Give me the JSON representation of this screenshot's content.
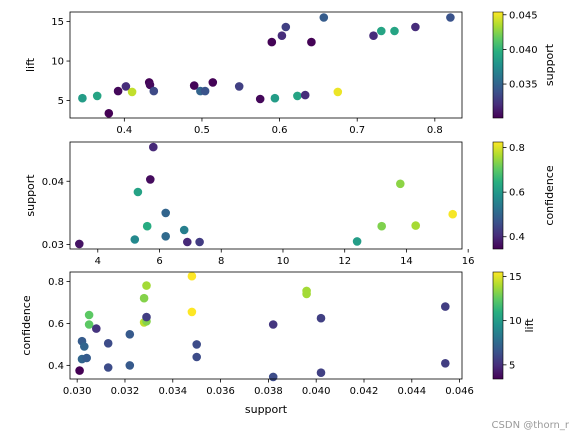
{
  "watermark": "CSDN @thorn_r",
  "chart_data": [
    {
      "type": "scatter",
      "xlabel": "",
      "ylabel": "lift",
      "xlim": [
        0.33,
        0.835
      ],
      "ylim": [
        2.8,
        16.2
      ],
      "xticks": [
        0.4,
        0.5,
        0.6,
        0.7,
        0.8
      ],
      "xtick_labels": [
        "0.4",
        "0.5",
        "0.6",
        "0.7",
        "0.8"
      ],
      "yticks": [
        5,
        10,
        15
      ],
      "ytick_labels": [
        "5",
        "10",
        "15"
      ],
      "colorbar": {
        "label": "support",
        "colormap": "viridis",
        "range": [
          0.0301,
          0.0454
        ],
        "ticks": [
          0.035,
          0.04,
          0.045
        ],
        "tick_labels": [
          "0.035",
          "0.040",
          "0.045"
        ]
      },
      "points": [
        {
          "x": 0.346,
          "y": 5.3,
          "c": 0.0385
        },
        {
          "x": 0.365,
          "y": 5.6,
          "c": 0.039
        },
        {
          "x": 0.38,
          "y": 3.4,
          "c": 0.0301
        },
        {
          "x": 0.392,
          "y": 6.2,
          "c": 0.0304
        },
        {
          "x": 0.402,
          "y": 6.8,
          "c": 0.032
        },
        {
          "x": 0.41,
          "y": 6.1,
          "c": 0.044
        },
        {
          "x": 0.432,
          "y": 7.3,
          "c": 0.0302
        },
        {
          "x": 0.433,
          "y": 7.0,
          "c": 0.0305
        },
        {
          "x": 0.438,
          "y": 6.2,
          "c": 0.0335
        },
        {
          "x": 0.49,
          "y": 6.9,
          "c": 0.0303
        },
        {
          "x": 0.498,
          "y": 6.2,
          "c": 0.035
        },
        {
          "x": 0.504,
          "y": 6.2,
          "c": 0.034
        },
        {
          "x": 0.514,
          "y": 7.3,
          "c": 0.0302
        },
        {
          "x": 0.548,
          "y": 6.8,
          "c": 0.033
        },
        {
          "x": 0.575,
          "y": 5.2,
          "c": 0.0304
        },
        {
          "x": 0.594,
          "y": 5.3,
          "c": 0.0385
        },
        {
          "x": 0.59,
          "y": 12.4,
          "c": 0.0302
        },
        {
          "x": 0.603,
          "y": 13.2,
          "c": 0.032
        },
        {
          "x": 0.608,
          "y": 14.3,
          "c": 0.033
        },
        {
          "x": 0.623,
          "y": 5.6,
          "c": 0.039
        },
        {
          "x": 0.633,
          "y": 5.7,
          "c": 0.032
        },
        {
          "x": 0.641,
          "y": 12.4,
          "c": 0.0302
        },
        {
          "x": 0.657,
          "y": 15.5,
          "c": 0.0345
        },
        {
          "x": 0.675,
          "y": 6.1,
          "c": 0.045
        },
        {
          "x": 0.721,
          "y": 13.2,
          "c": 0.032
        },
        {
          "x": 0.731,
          "y": 13.8,
          "c": 0.039
        },
        {
          "x": 0.748,
          "y": 13.8,
          "c": 0.039
        },
        {
          "x": 0.775,
          "y": 14.3,
          "c": 0.032
        },
        {
          "x": 0.82,
          "y": 15.5,
          "c": 0.034
        }
      ]
    },
    {
      "type": "scatter",
      "xlabel": "",
      "ylabel": "support",
      "xlim": [
        3.1,
        15.8
      ],
      "ylim": [
        0.0293,
        0.0462
      ],
      "xticks": [
        4,
        6,
        8,
        10,
        12,
        14,
        16
      ],
      "xtick_labels": [
        "4",
        "6",
        "8",
        "10",
        "12",
        "14",
        "16"
      ],
      "yticks": [
        0.03,
        0.04
      ],
      "ytick_labels": [
        "0.03",
        "0.04"
      ],
      "colorbar": {
        "label": "confidence",
        "colormap": "viridis",
        "range": [
          0.345,
          0.825
        ],
        "ticks": [
          0.4,
          0.6,
          0.8
        ],
        "tick_labels": [
          "0.4",
          "0.6",
          "0.8"
        ]
      },
      "points": [
        {
          "x": 3.4,
          "y": 0.0301,
          "c": 0.37
        },
        {
          "x": 5.2,
          "y": 0.0308,
          "c": 0.57
        },
        {
          "x": 5.3,
          "y": 0.0383,
          "c": 0.62
        },
        {
          "x": 5.6,
          "y": 0.0329,
          "c": 0.64
        },
        {
          "x": 5.8,
          "y": 0.0454,
          "c": 0.4
        },
        {
          "x": 5.7,
          "y": 0.0403,
          "c": 0.36
        },
        {
          "x": 6.2,
          "y": 0.035,
          "c": 0.5
        },
        {
          "x": 6.2,
          "y": 0.0313,
          "c": 0.51
        },
        {
          "x": 6.8,
          "y": 0.0323,
          "c": 0.55
        },
        {
          "x": 6.9,
          "y": 0.0304,
          "c": 0.4
        },
        {
          "x": 7.3,
          "y": 0.0304,
          "c": 0.43
        },
        {
          "x": 12.4,
          "y": 0.0305,
          "c": 0.61
        },
        {
          "x": 13.2,
          "y": 0.0329,
          "c": 0.73
        },
        {
          "x": 13.8,
          "y": 0.0396,
          "c": 0.74
        },
        {
          "x": 14.3,
          "y": 0.033,
          "c": 0.76
        },
        {
          "x": 15.5,
          "y": 0.0348,
          "c": 0.82
        }
      ]
    },
    {
      "type": "scatter",
      "xlabel": "support",
      "ylabel": "confidence",
      "xlim": [
        0.0297,
        0.0461
      ],
      "ylim": [
        0.335,
        0.845
      ],
      "xticks": [
        0.03,
        0.032,
        0.034,
        0.036,
        0.038,
        0.04,
        0.042,
        0.044,
        0.046
      ],
      "xtick_labels": [
        "0.030",
        "0.032",
        "0.034",
        "0.036",
        "0.038",
        "0.040",
        "0.042",
        "0.044",
        "0.046"
      ],
      "yticks": [
        0.4,
        0.6,
        0.8
      ],
      "ytick_labels": [
        "0.4",
        "0.6",
        "0.8"
      ],
      "colorbar": {
        "label": "lift",
        "colormap": "viridis",
        "range": [
          3.4,
          15.5
        ],
        "ticks": [
          5,
          10,
          15
        ],
        "tick_labels": [
          "5",
          "10",
          "15"
        ]
      },
      "points": [
        {
          "x": 0.0301,
          "y": 0.375,
          "c": 3.4
        },
        {
          "x": 0.0302,
          "y": 0.515,
          "c": 6.9
        },
        {
          "x": 0.0303,
          "y": 0.49,
          "c": 7.3
        },
        {
          "x": 0.0302,
          "y": 0.43,
          "c": 7.3
        },
        {
          "x": 0.0304,
          "y": 0.435,
          "c": 6.9
        },
        {
          "x": 0.0305,
          "y": 0.64,
          "c": 12.4
        },
        {
          "x": 0.0305,
          "y": 0.595,
          "c": 12.4
        },
        {
          "x": 0.0308,
          "y": 0.575,
          "c": 5.2
        },
        {
          "x": 0.0313,
          "y": 0.505,
          "c": 6.2
        },
        {
          "x": 0.0313,
          "y": 0.39,
          "c": 6.2
        },
        {
          "x": 0.0322,
          "y": 0.548,
          "c": 6.8
        },
        {
          "x": 0.0322,
          "y": 0.4,
          "c": 6.8
        },
        {
          "x": 0.0328,
          "y": 0.72,
          "c": 13.2
        },
        {
          "x": 0.0329,
          "y": 0.78,
          "c": 13.8
        },
        {
          "x": 0.0328,
          "y": 0.605,
          "c": 14.3
        },
        {
          "x": 0.0329,
          "y": 0.61,
          "c": 13.2
        },
        {
          "x": 0.0329,
          "y": 0.63,
          "c": 5.6
        },
        {
          "x": 0.0348,
          "y": 0.825,
          "c": 15.5
        },
        {
          "x": 0.0348,
          "y": 0.655,
          "c": 15.5
        },
        {
          "x": 0.035,
          "y": 0.5,
          "c": 6.2
        },
        {
          "x": 0.035,
          "y": 0.44,
          "c": 6.2
        },
        {
          "x": 0.0382,
          "y": 0.595,
          "c": 5.3
        },
        {
          "x": 0.0382,
          "y": 0.345,
          "c": 6.2
        },
        {
          "x": 0.0396,
          "y": 0.74,
          "c": 13.8
        },
        {
          "x": 0.0396,
          "y": 0.755,
          "c": 13.8
        },
        {
          "x": 0.0402,
          "y": 0.625,
          "c": 5.7
        },
        {
          "x": 0.0402,
          "y": 0.365,
          "c": 5.7
        },
        {
          "x": 0.0454,
          "y": 0.68,
          "c": 5.6
        },
        {
          "x": 0.0454,
          "y": 0.41,
          "c": 5.6
        }
      ]
    }
  ]
}
